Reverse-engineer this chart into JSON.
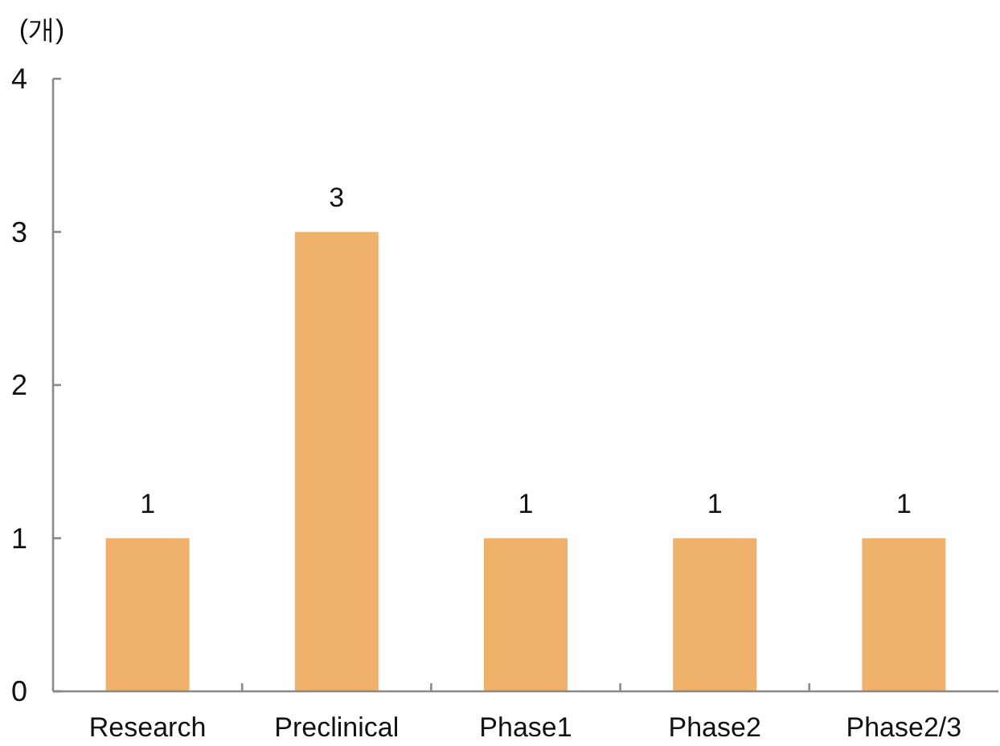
{
  "chart_data": {
    "type": "bar",
    "ylabel": "(개)",
    "categories": [
      "Research",
      "Preclinical",
      "Phase1",
      "Phase2",
      "Phase2/3"
    ],
    "values": [
      1,
      3,
      1,
      1,
      1
    ],
    "color": "#f0b26b",
    "ylim": [
      0,
      4
    ],
    "yticks": [
      0,
      1,
      2,
      3,
      4
    ],
    "grid": false,
    "data_labels": true
  }
}
